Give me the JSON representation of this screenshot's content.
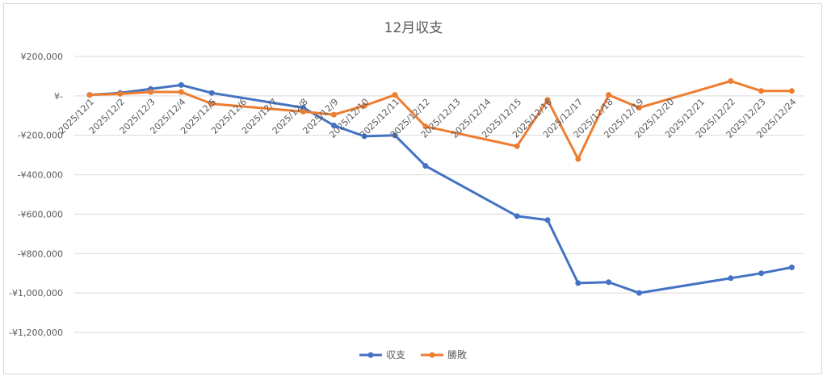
{
  "chart_data": {
    "type": "line",
    "title": "12月収支",
    "xlabel": "",
    "ylabel": "",
    "ylim": [
      -1200000,
      200000
    ],
    "yticks": [
      200000,
      0,
      -200000,
      -400000,
      -600000,
      -800000,
      -1000000,
      -1200000
    ],
    "ytick_labels": [
      "¥200,000",
      "¥-",
      "-¥200,000",
      "-¥400,000",
      "-¥600,000",
      "-¥800,000",
      "-¥1,000,000",
      "-¥1,200,000"
    ],
    "categories": [
      "2025/12/1",
      "2025/12/2",
      "2025/12/3",
      "2025/12/4",
      "2025/12/5",
      "2025/12/6",
      "2025/12/7",
      "2025/12/8",
      "2025/12/9",
      "2025/12/10",
      "2025/12/11",
      "2025/12/12",
      "2025/12/13",
      "2025/12/14",
      "2025/12/15",
      "2025/12/16",
      "2025/12/17",
      "2025/12/18",
      "2025/12/19",
      "2025/12/20",
      "2025/12/21",
      "2025/12/22",
      "2025/12/23",
      "2025/12/24"
    ],
    "series": [
      {
        "name": "収支",
        "color": "#4472c4",
        "values": [
          5000,
          15000,
          35000,
          55000,
          15000,
          null,
          null,
          -60000,
          -150000,
          -205000,
          -200000,
          -355000,
          null,
          null,
          -610000,
          -630000,
          -950000,
          -945000,
          -1000000,
          null,
          null,
          -925000,
          -900000,
          -870000
        ]
      },
      {
        "name": "勝敗",
        "color": "#ed7d31",
        "values": [
          5000,
          10000,
          20000,
          20000,
          -40000,
          null,
          null,
          -80000,
          -95000,
          -50000,
          5000,
          -155000,
          null,
          null,
          -255000,
          -20000,
          -320000,
          5000,
          -60000,
          null,
          null,
          75000,
          25000,
          25000
        ]
      }
    ],
    "grid": true,
    "legend_position": "bottom"
  }
}
